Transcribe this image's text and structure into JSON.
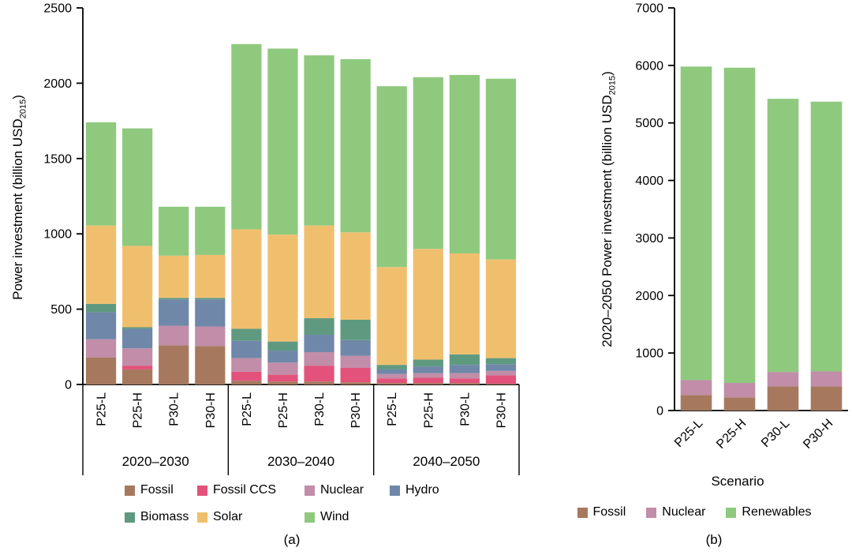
{
  "panel_a": {
    "caption": "(a)",
    "ylabel": {
      "prefix": "Power investment (billion USD",
      "sub": "2015",
      "suffix": ")"
    },
    "legend_rows": [
      [
        "Fossil",
        "Fossil CCS",
        "Nuclear",
        "Hydro"
      ],
      [
        "Biomass",
        "Solar",
        "Wind"
      ]
    ]
  },
  "panel_b": {
    "caption": "(b)",
    "xlabel": "Scenario",
    "ylabel": {
      "prefix": "2020–2050 Power investment (billion USD",
      "sub": "2015",
      "suffix": ")"
    },
    "legend_rows": [
      [
        "Fossil",
        "Nuclear",
        "Renewables"
      ]
    ]
  },
  "chart_data": [
    {
      "id": "a",
      "type": "bar",
      "stacked": true,
      "title": "",
      "ylabel": "Power investment (billion USD2015)",
      "xlabel": "",
      "ylim": [
        0,
        2500
      ],
      "yticks": [
        0,
        500,
        1000,
        1500,
        2000,
        2500
      ],
      "grid": false,
      "legend_position": "bottom",
      "x_tick_rotation": 90,
      "categories": [
        "P25-L",
        "P25-H",
        "P30-L",
        "P30-H",
        "P25-L",
        "P25-H",
        "P30-L",
        "P30-H",
        "P25-L",
        "P25-H",
        "P30-L",
        "P30-H"
      ],
      "groups": [
        {
          "label": "2020–2030",
          "start": 0,
          "end": 4
        },
        {
          "label": "2030–2040",
          "start": 4,
          "end": 8
        },
        {
          "label": "2040–2050",
          "start": 8,
          "end": 12
        }
      ],
      "series": [
        {
          "name": "Fossil",
          "color": "#a6795f",
          "values": [
            180,
            100,
            260,
            255,
            25,
            20,
            20,
            15,
            10,
            10,
            10,
            5
          ]
        },
        {
          "name": "Fossil CCS",
          "color": "#e2527b",
          "values": [
            0,
            25,
            0,
            0,
            60,
            45,
            105,
            95,
            30,
            35,
            30,
            55
          ]
        },
        {
          "name": "Nuclear",
          "color": "#c18da8",
          "values": [
            120,
            115,
            130,
            130,
            90,
            80,
            90,
            80,
            30,
            30,
            35,
            30
          ]
        },
        {
          "name": "Hydro",
          "color": "#6f87a8",
          "values": [
            180,
            130,
            175,
            180,
            115,
            80,
            115,
            105,
            30,
            45,
            55,
            45
          ]
        },
        {
          "name": "Biomass",
          "color": "#5f9a80",
          "values": [
            55,
            10,
            10,
            10,
            80,
            60,
            110,
            135,
            30,
            45,
            70,
            40
          ]
        },
        {
          "name": "Solar",
          "color": "#f0bf6e",
          "values": [
            520,
            540,
            280,
            285,
            660,
            710,
            615,
            580,
            650,
            735,
            670,
            655
          ]
        },
        {
          "name": "Wind",
          "color": "#8fc97e",
          "values": [
            685,
            780,
            325,
            320,
            1230,
            1235,
            1130,
            1150,
            1200,
            1140,
            1185,
            1200
          ]
        }
      ]
    },
    {
      "id": "b",
      "type": "bar",
      "stacked": true,
      "title": "",
      "ylabel": "2020–2050 Power investment (billion USD2015)",
      "xlabel": "Scenario",
      "ylim": [
        0,
        7000
      ],
      "yticks": [
        0,
        1000,
        2000,
        3000,
        4000,
        5000,
        6000,
        7000
      ],
      "grid": false,
      "legend_position": "bottom",
      "x_tick_rotation": 45,
      "categories": [
        "P25-L",
        "P25-H",
        "P30-L",
        "P30-H"
      ],
      "series": [
        {
          "name": "Fossil",
          "color": "#a6795f",
          "values": [
            270,
            230,
            420,
            420
          ]
        },
        {
          "name": "Nuclear",
          "color": "#c18da8",
          "values": [
            260,
            250,
            250,
            260
          ]
        },
        {
          "name": "Renewables",
          "color": "#8fc97e",
          "values": [
            5450,
            5480,
            4750,
            4690
          ]
        }
      ]
    }
  ]
}
